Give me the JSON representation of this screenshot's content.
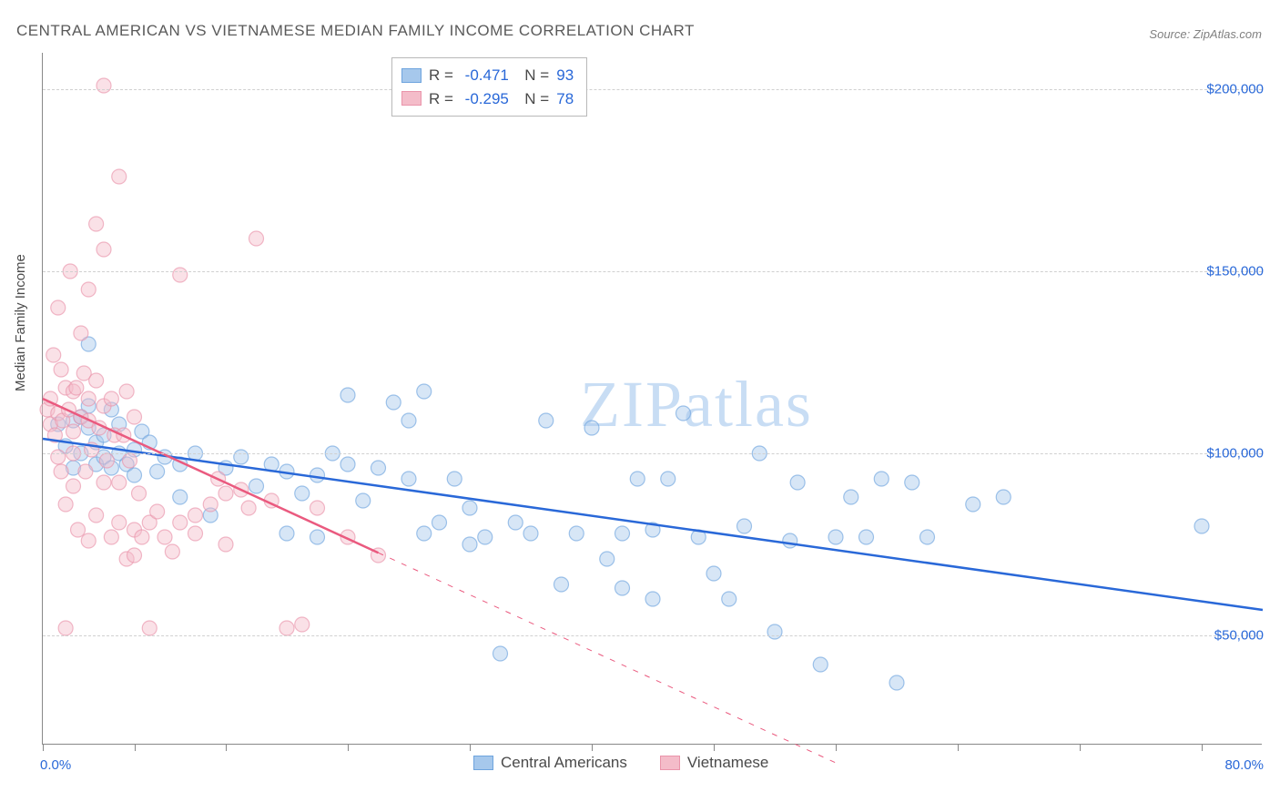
{
  "title": "CENTRAL AMERICAN VS VIETNAMESE MEDIAN FAMILY INCOME CORRELATION CHART",
  "source_label": "Source:",
  "source_name": "ZipAtlas.com",
  "y_axis_label": "Median Family Income",
  "watermark": "ZIPatlas",
  "chart": {
    "type": "scatter",
    "background_color": "#ffffff",
    "grid_color": "#d0d0d0",
    "axis_color": "#888888",
    "text_color": "#4a4a4a",
    "value_color": "#2968d8",
    "xlim": [
      0,
      80
    ],
    "ylim": [
      20000,
      210000
    ],
    "x_ticks": [
      0,
      6,
      12,
      20,
      28,
      36,
      44,
      52,
      60,
      68,
      76
    ],
    "x_tick_labels": {
      "0": "0.0%",
      "80": "80.0%"
    },
    "y_gridlines": [
      50000,
      100000,
      150000,
      200000
    ],
    "y_tick_labels": [
      "$50,000",
      "$100,000",
      "$150,000",
      "$200,000"
    ],
    "marker_radius": 8,
    "marker_opacity": 0.45,
    "marker_stroke_width": 1.2,
    "series": [
      {
        "name": "Central Americans",
        "color_fill": "#a6c8ec",
        "color_stroke": "#6ea4de",
        "R": "-0.471",
        "N": "93",
        "trend": {
          "x1": 0,
          "y1": 104000,
          "x2": 80,
          "y2": 57000,
          "solid_until_x": 80,
          "color": "#2968d8",
          "width": 2.5
        },
        "points": [
          [
            1,
            108000
          ],
          [
            1.5,
            102000
          ],
          [
            2,
            109000
          ],
          [
            2,
            96000
          ],
          [
            2.5,
            110000
          ],
          [
            2.5,
            100000
          ],
          [
            3,
            107000
          ],
          [
            3,
            113000
          ],
          [
            3,
            130000
          ],
          [
            3.5,
            97000
          ],
          [
            3.5,
            103000
          ],
          [
            4,
            105000
          ],
          [
            4,
            99000
          ],
          [
            4.5,
            112000
          ],
          [
            4.5,
            96000
          ],
          [
            5,
            100000
          ],
          [
            5,
            108000
          ],
          [
            5.5,
            97000
          ],
          [
            6,
            101000
          ],
          [
            6,
            94000
          ],
          [
            6.5,
            106000
          ],
          [
            7,
            103000
          ],
          [
            7.5,
            95000
          ],
          [
            8,
            99000
          ],
          [
            9,
            88000
          ],
          [
            9,
            97000
          ],
          [
            10,
            100000
          ],
          [
            11,
            83000
          ],
          [
            12,
            96000
          ],
          [
            13,
            99000
          ],
          [
            14,
            91000
          ],
          [
            15,
            97000
          ],
          [
            16,
            95000
          ],
          [
            16,
            78000
          ],
          [
            17,
            89000
          ],
          [
            18,
            94000
          ],
          [
            18,
            77000
          ],
          [
            19,
            100000
          ],
          [
            20,
            97000
          ],
          [
            20,
            116000
          ],
          [
            21,
            87000
          ],
          [
            22,
            96000
          ],
          [
            23,
            114000
          ],
          [
            24,
            109000
          ],
          [
            24,
            93000
          ],
          [
            25,
            117000
          ],
          [
            25,
            78000
          ],
          [
            26,
            81000
          ],
          [
            27,
            93000
          ],
          [
            28,
            85000
          ],
          [
            28,
            75000
          ],
          [
            29,
            77000
          ],
          [
            30,
            45000
          ],
          [
            31,
            81000
          ],
          [
            32,
            78000
          ],
          [
            33,
            109000
          ],
          [
            34,
            64000
          ],
          [
            35,
            78000
          ],
          [
            36,
            107000
          ],
          [
            37,
            71000
          ],
          [
            38,
            78000
          ],
          [
            38,
            63000
          ],
          [
            39,
            93000
          ],
          [
            40,
            79000
          ],
          [
            40,
            60000
          ],
          [
            41,
            93000
          ],
          [
            42,
            111000
          ],
          [
            43,
            77000
          ],
          [
            44,
            67000
          ],
          [
            45,
            60000
          ],
          [
            46,
            80000
          ],
          [
            47,
            100000
          ],
          [
            48,
            51000
          ],
          [
            49,
            76000
          ],
          [
            49.5,
            92000
          ],
          [
            51,
            42000
          ],
          [
            52,
            77000
          ],
          [
            53,
            88000
          ],
          [
            54,
            77000
          ],
          [
            55,
            93000
          ],
          [
            56,
            37000
          ],
          [
            57,
            92000
          ],
          [
            58,
            77000
          ],
          [
            61,
            86000
          ],
          [
            63,
            88000
          ],
          [
            76,
            80000
          ]
        ]
      },
      {
        "name": "Vietnamese",
        "color_fill": "#f4bcc9",
        "color_stroke": "#ea94aa",
        "R": "-0.295",
        "N": "78",
        "trend": {
          "x1": 0,
          "y1": 115000,
          "x2": 52,
          "y2": 15000,
          "solid_until_x": 22,
          "color": "#ea5a7f",
          "width": 2.5
        },
        "points": [
          [
            0.3,
            112000
          ],
          [
            0.5,
            108000
          ],
          [
            0.5,
            115000
          ],
          [
            0.7,
            127000
          ],
          [
            0.8,
            105000
          ],
          [
            1,
            111000
          ],
          [
            1,
            140000
          ],
          [
            1,
            99000
          ],
          [
            1.2,
            123000
          ],
          [
            1.2,
            95000
          ],
          [
            1.3,
            109000
          ],
          [
            1.5,
            118000
          ],
          [
            1.5,
            86000
          ],
          [
            1.5,
            52000
          ],
          [
            1.7,
            112000
          ],
          [
            1.8,
            150000
          ],
          [
            2,
            106000
          ],
          [
            2,
            100000
          ],
          [
            2,
            117000
          ],
          [
            2,
            91000
          ],
          [
            2.2,
            118000
          ],
          [
            2.3,
            79000
          ],
          [
            2.5,
            110000
          ],
          [
            2.5,
            133000
          ],
          [
            2.7,
            122000
          ],
          [
            2.8,
            95000
          ],
          [
            3,
            109000
          ],
          [
            3,
            115000
          ],
          [
            3,
            145000
          ],
          [
            3,
            76000
          ],
          [
            3.2,
            101000
          ],
          [
            3.5,
            120000
          ],
          [
            3.5,
            163000
          ],
          [
            3.5,
            83000
          ],
          [
            3.7,
            107000
          ],
          [
            4,
            113000
          ],
          [
            4,
            92000
          ],
          [
            4,
            156000
          ],
          [
            4,
            201000
          ],
          [
            4.2,
            98000
          ],
          [
            4.5,
            115000
          ],
          [
            4.5,
            77000
          ],
          [
            4.7,
            105000
          ],
          [
            5,
            176000
          ],
          [
            5,
            92000
          ],
          [
            5,
            81000
          ],
          [
            5.3,
            105000
          ],
          [
            5.5,
            117000
          ],
          [
            5.5,
            71000
          ],
          [
            5.7,
            98000
          ],
          [
            6,
            110000
          ],
          [
            6,
            79000
          ],
          [
            6,
            72000
          ],
          [
            6.3,
            89000
          ],
          [
            6.5,
            77000
          ],
          [
            7,
            81000
          ],
          [
            7,
            52000
          ],
          [
            7.5,
            84000
          ],
          [
            8,
            77000
          ],
          [
            8.5,
            73000
          ],
          [
            9,
            149000
          ],
          [
            9,
            81000
          ],
          [
            10,
            83000
          ],
          [
            10,
            78000
          ],
          [
            11,
            86000
          ],
          [
            11.5,
            93000
          ],
          [
            12,
            89000
          ],
          [
            12,
            75000
          ],
          [
            13,
            90000
          ],
          [
            13.5,
            85000
          ],
          [
            14,
            159000
          ],
          [
            15,
            87000
          ],
          [
            16,
            52000
          ],
          [
            17,
            53000
          ],
          [
            18,
            85000
          ],
          [
            20,
            77000
          ],
          [
            22,
            72000
          ]
        ]
      }
    ]
  }
}
